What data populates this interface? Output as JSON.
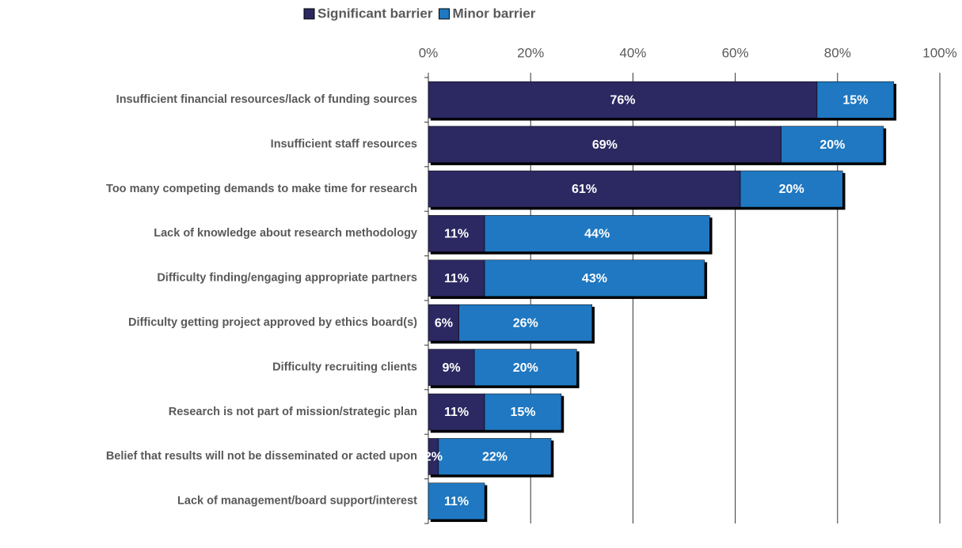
{
  "chart_data": {
    "type": "stacked_barh",
    "categories": [
      "Insufficient financial resources/lack of funding sources",
      "Insufficient staff resources",
      "Too many competing demands to make time for research",
      "Lack of knowledge about research methodology",
      "Difficulty finding/engaging appropriate partners",
      "Difficulty getting project approved by ethics board(s)",
      "Difficulty recruiting clients",
      "Research is not part of  mission/strategic plan",
      "Belief that results will not be disseminated or acted upon",
      "Lack of management/board support/interest"
    ],
    "series": [
      {
        "name": "Significant barrier",
        "color": "#2b2862",
        "values": [
          76,
          69,
          61,
          11,
          11,
          6,
          9,
          11,
          2,
          null
        ],
        "value_labels": [
          "76%",
          "69%",
          "61%",
          "11%",
          "11%",
          "6%",
          "9%",
          "11%",
          "2%",
          null
        ]
      },
      {
        "name": "Minor barrier",
        "color": "#1f78c1",
        "values": [
          15,
          20,
          20,
          44,
          43,
          26,
          20,
          15,
          22,
          11
        ],
        "value_labels": [
          "15%",
          "20%",
          "20%",
          "44%",
          "43%",
          "26%",
          "20%",
          "15%",
          "22%",
          "11%"
        ]
      }
    ],
    "xlim": [
      0,
      100
    ],
    "xticks": [
      {
        "value": 0,
        "label": "0%"
      },
      {
        "value": 20,
        "label": "20%"
      },
      {
        "value": 40,
        "label": "40%"
      },
      {
        "value": 60,
        "label": "60%"
      },
      {
        "value": 80,
        "label": "80%"
      },
      {
        "value": 100,
        "label": "100%"
      }
    ],
    "grid": true,
    "legend": "top"
  }
}
